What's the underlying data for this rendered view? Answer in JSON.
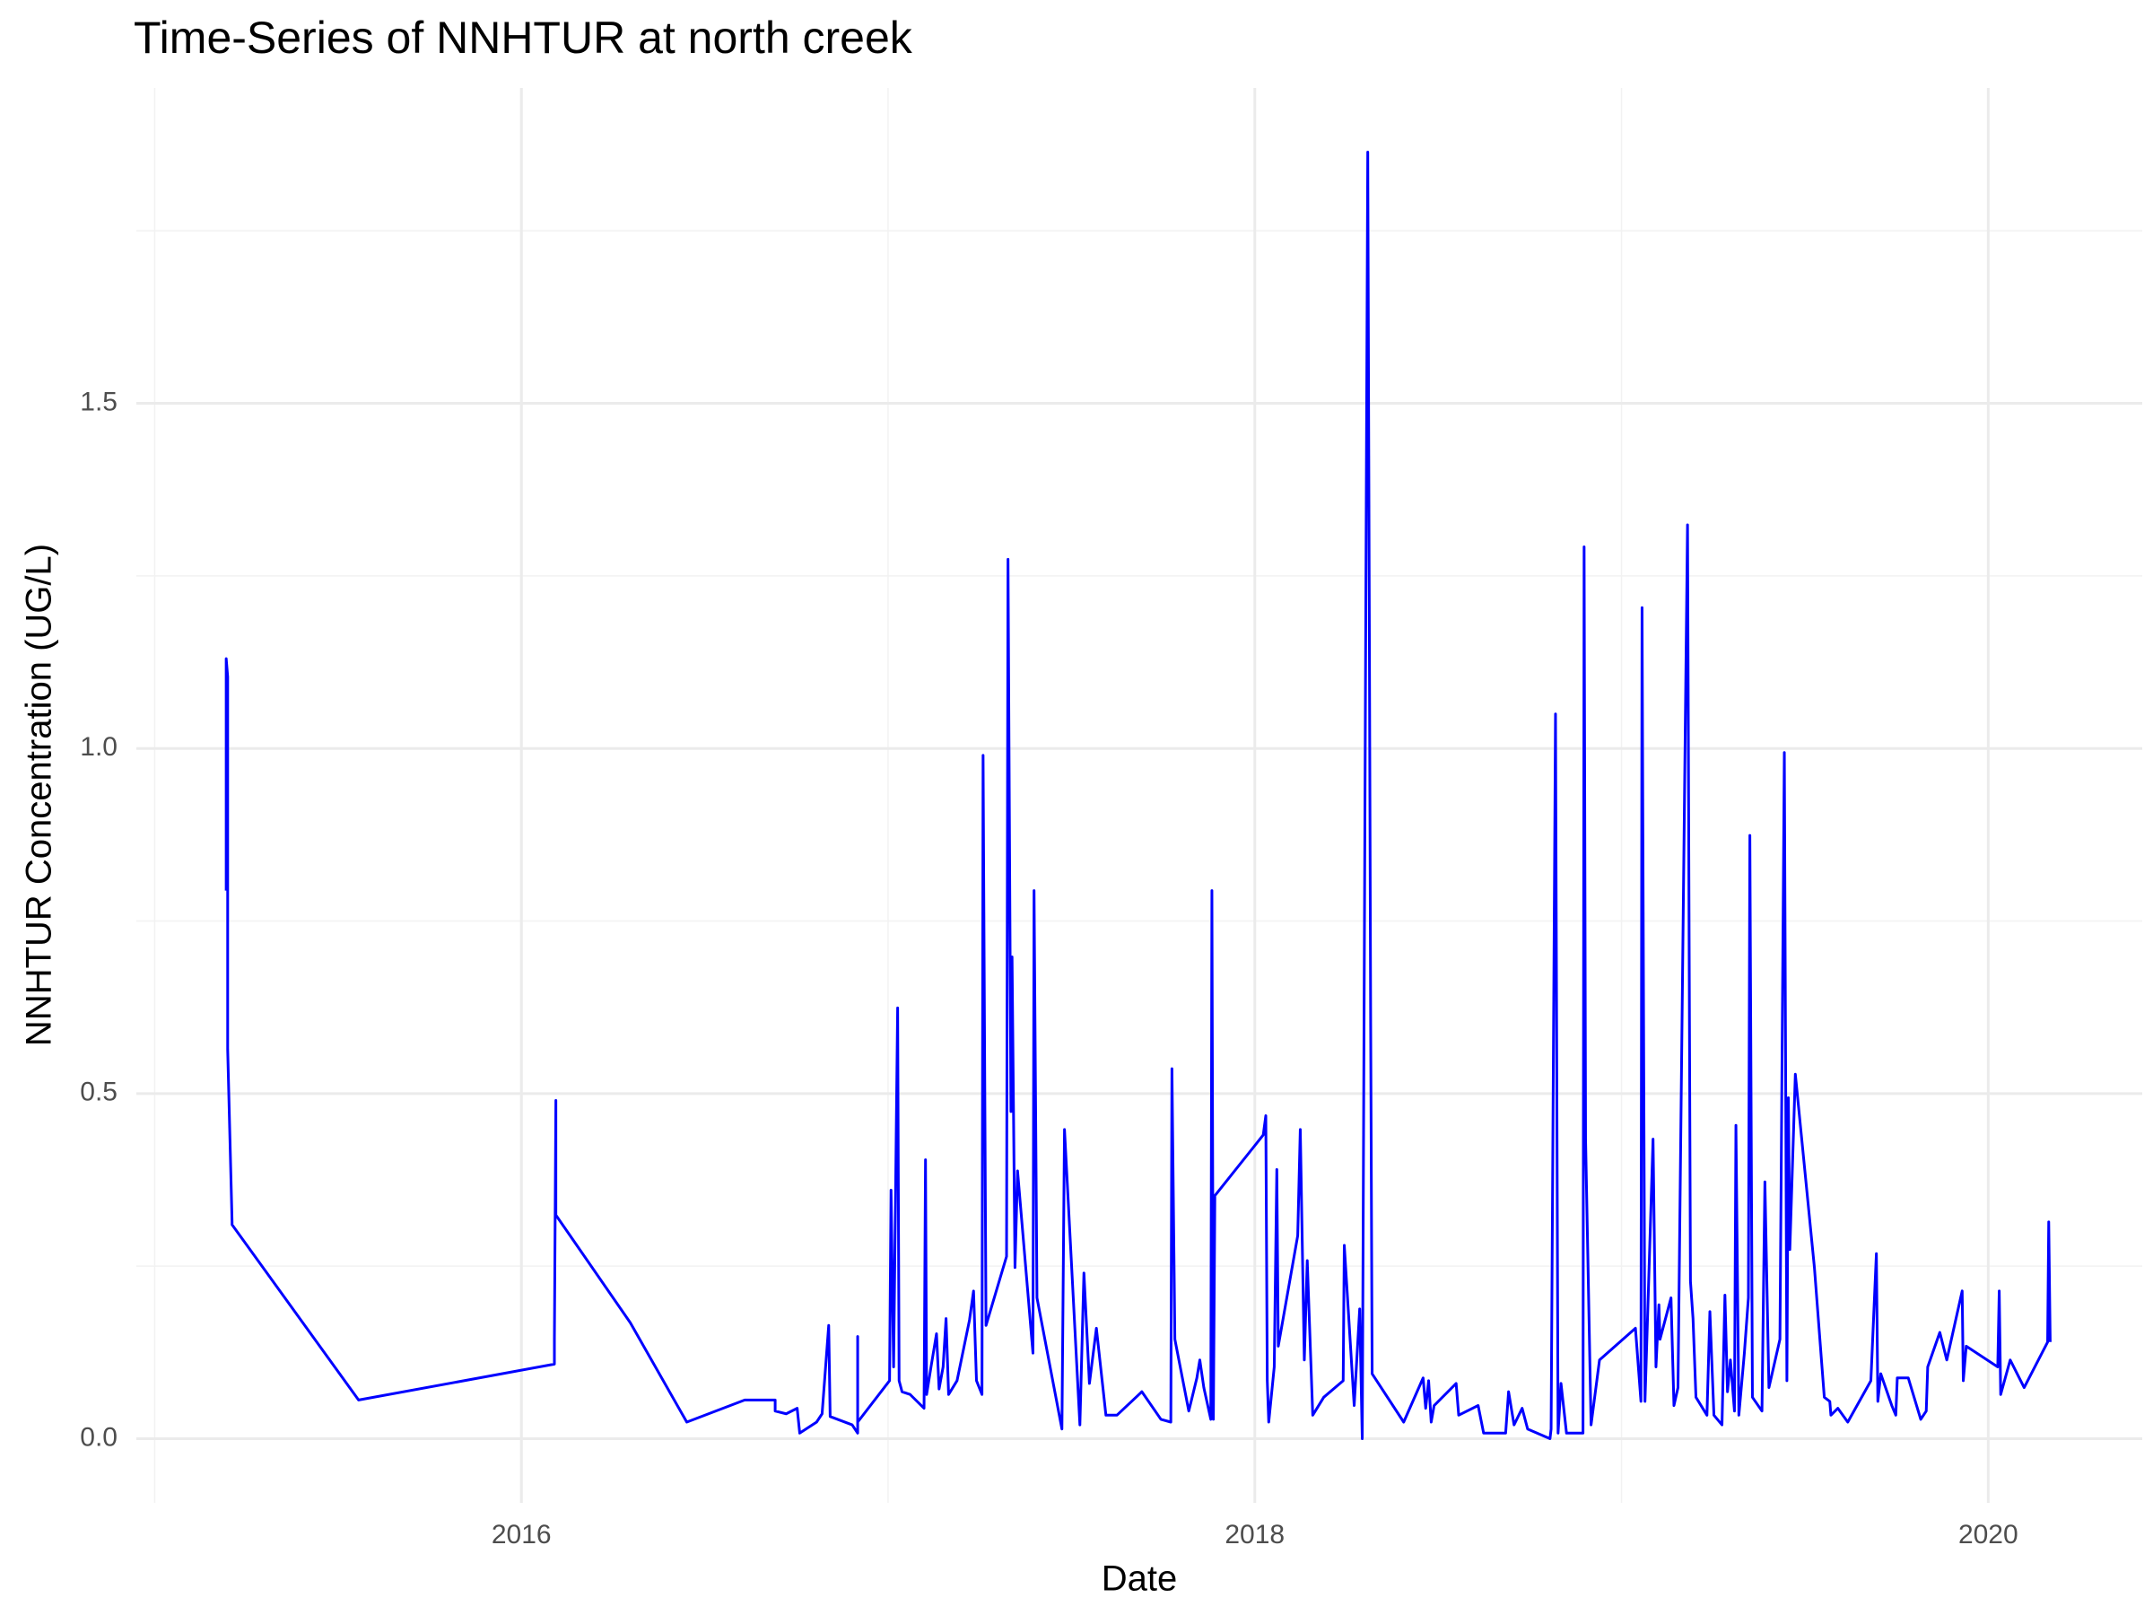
{
  "chart_data": {
    "type": "line",
    "title": "Time-Series of NNHTUR at north creek",
    "xlabel": "Date",
    "ylabel": "NNHTUR Concentration (UG/L)",
    "color": "#0000ff",
    "grid": true,
    "xlim": [
      2014.95,
      2020.42
    ],
    "xticks": [
      2016,
      2018,
      2020
    ],
    "minor_xticks": [
      2015,
      2017,
      2019
    ],
    "ylim": [
      -0.093,
      1.957
    ],
    "yticks": [
      {
        "value": 0,
        "label": "0.0"
      },
      0.5,
      {
        "value": 1,
        "label": "1.0"
      },
      1.5
    ],
    "minor_yticks": [
      0.25,
      0.75,
      1.25,
      1.75
    ],
    "x": [
      2015.195,
      2015.195,
      2015.199,
      2015.199,
      2015.211,
      2015.211,
      2015.556,
      2016.09,
      2016.09,
      2016.094,
      2016.094,
      2016.297,
      2016.451,
      2016.609,
      2016.692,
      2016.692,
      2016.722,
      2016.752,
      2016.759,
      2016.805,
      2016.82,
      2016.838,
      2016.842,
      2016.902,
      2016.917,
      2016.917,
      2016.917,
      2017.004,
      2017.008,
      2017.015,
      2017.026,
      2017.03,
      2017.038,
      2017.06,
      2017.098,
      2017.102,
      2017.105,
      2017.117,
      2017.132,
      2017.139,
      2017.15,
      2017.158,
      2017.165,
      2017.188,
      2017.222,
      2017.233,
      2017.241,
      2017.256,
      2017.259,
      2017.267,
      2017.323,
      2017.327,
      2017.335,
      2017.338,
      2017.346,
      2017.353,
      2017.395,
      2017.398,
      2017.406,
      2017.474,
      2017.481,
      2017.523,
      2017.534,
      2017.549,
      2017.568,
      2017.594,
      2017.624,
      2017.692,
      2017.744,
      2017.771,
      2017.774,
      2017.782,
      2017.82,
      2017.842,
      2017.85,
      2017.861,
      2017.88,
      2017.883,
      2017.887,
      2017.891,
      2018.023,
      2018.03,
      2018.034,
      2018.038,
      2018.053,
      2018.06,
      2018.064,
      2018.117,
      2018.124,
      2018.135,
      2018.143,
      2018.158,
      2018.188,
      2018.241,
      2018.244,
      2018.271,
      2018.286,
      2018.293,
      2018.308,
      2018.316,
      2018.32,
      2018.406,
      2018.459,
      2018.466,
      2018.474,
      2018.481,
      2018.489,
      2018.549,
      2018.556,
      2018.609,
      2018.624,
      2018.684,
      2018.692,
      2018.707,
      2018.729,
      2018.744,
      2018.805,
      2018.808,
      2018.82,
      2018.827,
      2018.835,
      2018.85,
      2018.895,
      2018.898,
      2018.902,
      2018.917,
      2018.94,
      2019.038,
      2019.053,
      2019.056,
      2019.064,
      2019.086,
      2019.094,
      2019.102,
      2019.105,
      2019.135,
      2019.143,
      2019.154,
      2019.18,
      2019.188,
      2019.195,
      2019.203,
      2019.233,
      2019.241,
      2019.252,
      2019.274,
      2019.282,
      2019.289,
      2019.297,
      2019.308,
      2019.312,
      2019.32,
      2019.335,
      2019.346,
      2019.35,
      2019.357,
      2019.383,
      2019.391,
      2019.402,
      2019.432,
      2019.44,
      2019.444,
      2019.451,
      2019.455,
      2019.459,
      2019.474,
      2019.526,
      2019.553,
      2019.568,
      2019.571,
      2019.59,
      2019.617,
      2019.68,
      2019.695,
      2019.699,
      2019.707,
      2019.737,
      2019.748,
      2019.752,
      2019.782,
      2019.816,
      2019.831,
      2019.835,
      2019.868,
      2019.887,
      2019.929,
      2019.932,
      2019.94,
      2020.026,
      2020.03,
      2020.034,
      2020.06,
      2020.098,
      2020.162,
      2020.165,
      2020.169
    ],
    "values": [
      0.794,
      1.13,
      1.104,
      0.564,
      0.314,
      0.31,
      0.056,
      0.108,
      0.144,
      0.49,
      0.324,
      0.168,
      0.024,
      0.056,
      0.056,
      0.04,
      0.036,
      0.044,
      0.008,
      0.024,
      0.036,
      0.164,
      0.032,
      0.02,
      0.008,
      0.148,
      0.024,
      0.084,
      0.36,
      0.104,
      0.624,
      0.084,
      0.068,
      0.064,
      0.044,
      0.404,
      0.064,
      0.104,
      0.152,
      0.072,
      0.104,
      0.174,
      0.064,
      0.084,
      0.172,
      0.214,
      0.084,
      0.064,
      0.99,
      0.164,
      0.264,
      1.274,
      0.474,
      0.698,
      0.248,
      0.388,
      0.124,
      0.794,
      0.204,
      0.014,
      0.448,
      0.02,
      0.24,
      0.08,
      0.16,
      0.034,
      0.034,
      0.068,
      0.028,
      0.024,
      0.536,
      0.144,
      0.04,
      0.088,
      0.114,
      0.074,
      0.028,
      0.794,
      0.028,
      0.352,
      0.44,
      0.468,
      0.084,
      0.024,
      0.104,
      0.39,
      0.134,
      0.294,
      0.448,
      0.114,
      0.258,
      0.034,
      0.06,
      0.084,
      0.28,
      0.048,
      0.188,
      0.0,
      1.864,
      0.594,
      0.094,
      0.024,
      0.088,
      0.044,
      0.084,
      0.024,
      0.048,
      0.08,
      0.034,
      0.048,
      0.008,
      0.008,
      0.068,
      0.02,
      0.044,
      0.014,
      0.0,
      0.014,
      1.05,
      0.008,
      0.08,
      0.008,
      0.008,
      1.292,
      0.434,
      0.02,
      0.114,
      0.16,
      0.054,
      1.204,
      0.054,
      0.434,
      0.104,
      0.194,
      0.144,
      0.204,
      0.048,
      0.074,
      1.324,
      0.228,
      0.174,
      0.06,
      0.034,
      0.184,
      0.034,
      0.02,
      0.208,
      0.068,
      0.114,
      0.04,
      0.454,
      0.034,
      0.124,
      0.204,
      0.874,
      0.06,
      0.04,
      0.372,
      0.074,
      0.144,
      0.704,
      0.994,
      0.084,
      0.494,
      0.274,
      0.528,
      0.248,
      0.06,
      0.054,
      0.034,
      0.044,
      0.024,
      0.084,
      0.268,
      0.054,
      0.094,
      0.048,
      0.034,
      0.088,
      0.088,
      0.028,
      0.04,
      0.104,
      0.154,
      0.114,
      0.214,
      0.084,
      0.134,
      0.104,
      0.214,
      0.064,
      0.114,
      0.074,
      0.14,
      0.314,
      0.14
    ]
  }
}
